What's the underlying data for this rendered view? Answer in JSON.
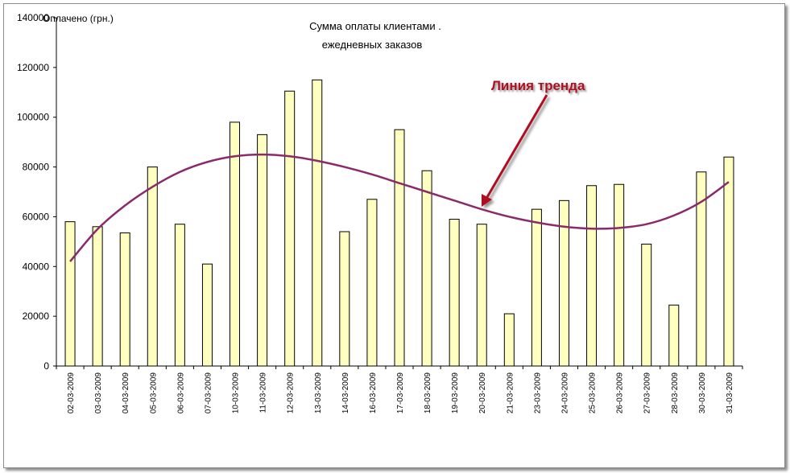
{
  "chart_data": {
    "type": "bar",
    "title_line1": "Сумма оплаты клиентами  .",
    "title_line2": "ежедневных заказов",
    "ylabel": "Оплачено (грн.)",
    "xlabel": "",
    "ylim": [
      0,
      140000
    ],
    "yticks": [
      "0",
      "20000",
      "40000",
      "60000",
      "80000",
      "100000",
      "120000",
      "140000"
    ],
    "categories": [
      "02-03-2009",
      "03-03-2009",
      "04-03-2009",
      "05-03-2009",
      "06-03-2009",
      "07-03-2009",
      "10-03-2009",
      "11-03-2009",
      "12-03-2009",
      "13-03-2009",
      "14-03-2009",
      "16-03-2009",
      "17-03-2009",
      "18-03-2009",
      "19-03-2009",
      "20-03-2009",
      "21-03-2009",
      "23-03-2009",
      "24-03-2009",
      "25-03-2009",
      "26-03-2009",
      "27-03-2009",
      "28-03-2009",
      "30-03-2009",
      "31-03-2009"
    ],
    "values": [
      58000,
      56000,
      53500,
      80000,
      57000,
      41000,
      98000,
      93000,
      110500,
      115000,
      54000,
      67000,
      95000,
      78500,
      59000,
      57000,
      21000,
      63000,
      66500,
      72500,
      73000,
      49000,
      24500,
      78000,
      84000
    ],
    "trendline": [
      42000,
      55000,
      64500,
      72000,
      78000,
      82000,
      84300,
      85000,
      84300,
      82500,
      80000,
      77000,
      73500,
      70000,
      66500,
      63000,
      60000,
      57700,
      56000,
      55200,
      55500,
      57000,
      60500,
      66000,
      74000
    ],
    "bar_color": "#ffffc0",
    "bar_border": "#000000",
    "trend_color": "#8b2a6b",
    "annotation": {
      "text": "Линия тренда",
      "color": "#b01020"
    },
    "grid": false,
    "legend": "none"
  }
}
